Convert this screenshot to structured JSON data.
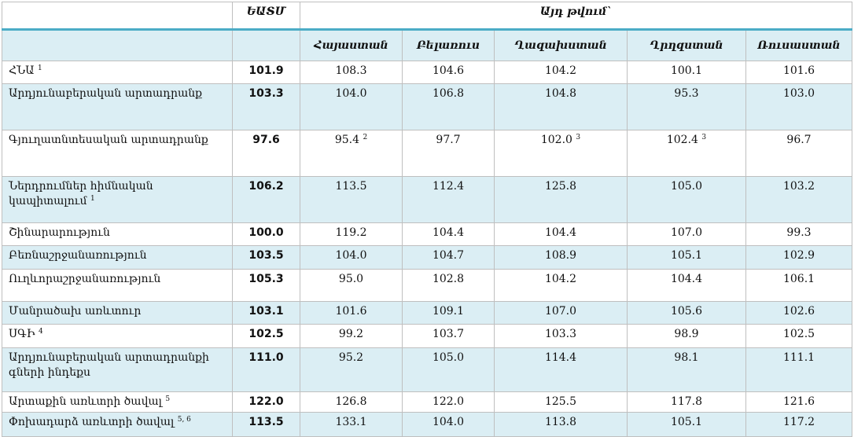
{
  "table": {
    "header": {
      "eaeu": "ԵԱՏՄ",
      "group": "Այդ թվում`",
      "countries": [
        "Հայաստան",
        "Բելառուս",
        "Ղազախստան",
        "Ղրղզստան",
        "Ռուսաստան"
      ]
    },
    "rows": [
      {
        "label": "ՀՆԱ",
        "note": "1",
        "eaeu": "101.9",
        "values": [
          "108.3",
          "104.6",
          "104.2",
          "100.1",
          "101.6"
        ]
      },
      {
        "label": "Արդյունաբերական արտադրանք",
        "eaeu": "103.3",
        "values": [
          "104.0",
          "106.8",
          "104.8",
          "95.3",
          "103.0"
        ]
      },
      {
        "label": "Գյուղատնտեսական արտադրանք",
        "eaeu": "97.6",
        "values": [
          {
            "text": "95.4",
            "note": "2"
          },
          "97.7",
          {
            "text": "102.0",
            "note": "3"
          },
          {
            "text": "102.4",
            "note": "3"
          },
          "96.7"
        ]
      },
      {
        "label": "Ներդրումներ հիմնական կապիտալում",
        "note": "1",
        "eaeu": "106.2",
        "values": [
          "113.5",
          "112.4",
          "125.8",
          "105.0",
          "103.2"
        ]
      },
      {
        "label": "Շինարարություն",
        "eaeu": "100.0",
        "values": [
          "119.2",
          "104.4",
          "104.4",
          "107.0",
          "99.3"
        ]
      },
      {
        "label": "Բեռնաշրջանառություն",
        "eaeu": "103.5",
        "values": [
          "104.0",
          "104.7",
          "108.9",
          "105.1",
          "102.9"
        ]
      },
      {
        "label": "Ուղևորաշրջանառություն",
        "eaeu": "105.3",
        "values": [
          "95.0",
          "102.8",
          "104.2",
          "104.4",
          "106.1"
        ]
      },
      {
        "label": "Մանրածախ առևտուր",
        "eaeu": "103.1",
        "values": [
          "101.6",
          "109.1",
          "107.0",
          "105.6",
          "102.6"
        ]
      },
      {
        "label": "ՍԳԻ",
        "note": "4",
        "eaeu": "102.5",
        "values": [
          "99.2",
          "103.7",
          "103.3",
          "98.9",
          "102.5"
        ]
      },
      {
        "label": "Արդյունաբերական արտադրանքի գների ինդեքս",
        "eaeu": "111.0",
        "values": [
          "95.2",
          "105.0",
          "114.4",
          "98.1",
          "111.1"
        ]
      },
      {
        "label": "Արտաքին առևտրի ծավալ",
        "note": "5",
        "eaeu": "122.0",
        "values": [
          "126.8",
          "122.0",
          "125.5",
          "117.8",
          "121.6"
        ]
      },
      {
        "label": "Փոխադարձ առևտրի ծավալ",
        "note": "5, 6",
        "eaeu": "113.5",
        "values": [
          "133.1",
          "104.0",
          "113.8",
          "105.1",
          "117.2"
        ]
      }
    ]
  }
}
